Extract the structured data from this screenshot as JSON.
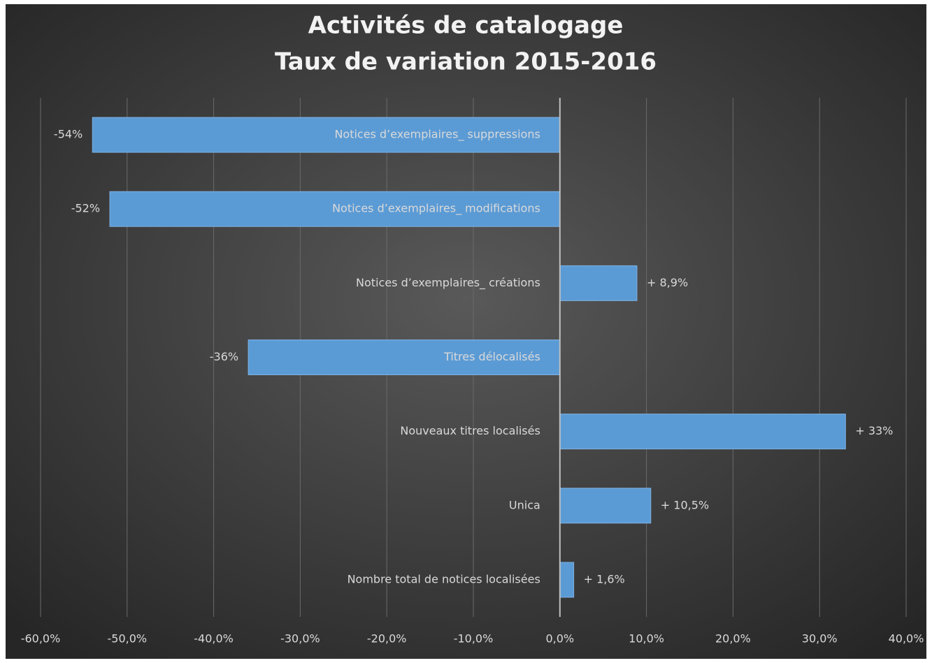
{
  "chart_data": {
    "type": "hbar",
    "title": "Activités de catalogage",
    "subtitle": "Taux de variation 2015-2016",
    "categories": [
      "Notices d’exemplaires_ suppressions",
      "Notices d’exemplaires_ modifications",
      "Notices d’exemplaires_ créations",
      "Titres délocalisés",
      "Nouveaux titres localisés",
      "Unica",
      "Nombre total de notices localisées"
    ],
    "values": [
      -54,
      -52,
      8.9,
      -36,
      33,
      10.5,
      1.6
    ],
    "value_labels": [
      "-54%",
      "-52%",
      "+ 8,9%",
      "-36%",
      "+ 33%",
      "+ 10,5%",
      "+ 1,6%"
    ],
    "color": "#5b9bd5",
    "xlim": [
      -60,
      40
    ],
    "xticks": [
      {
        "value": -60,
        "label": "-60,0%"
      },
      {
        "value": -50,
        "label": "-50,0%"
      },
      {
        "value": -40,
        "label": "-40,0%"
      },
      {
        "value": -30,
        "label": "-30,0%"
      },
      {
        "value": -20,
        "label": "-20,0%"
      },
      {
        "value": -10,
        "label": "-10,0%"
      },
      {
        "value": 0,
        "label": "0,0%"
      },
      {
        "value": 10,
        "label": "10,0%"
      },
      {
        "value": 20,
        "label": "20,0%"
      },
      {
        "value": 30,
        "label": "30,0%"
      },
      {
        "value": 40,
        "label": "40,0%"
      }
    ],
    "grid": true
  }
}
